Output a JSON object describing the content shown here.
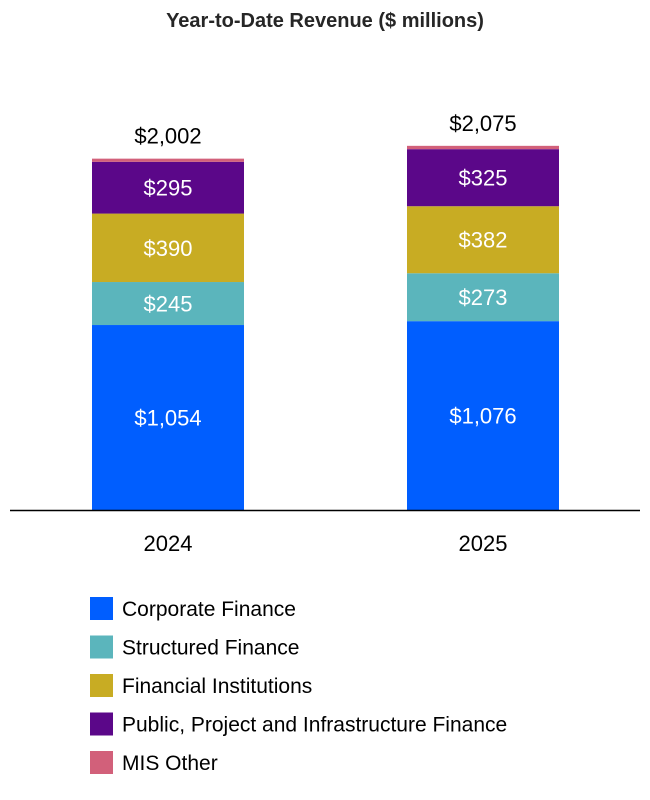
{
  "chart_data": {
    "type": "bar",
    "stacked": true,
    "title": "Year-to-Date Revenue ($ millions)",
    "xlabel": "",
    "ylabel": "",
    "categories": [
      "2024",
      "2025"
    ],
    "totals": [
      2002,
      2075
    ],
    "total_labels": [
      "$2,002",
      "$2,075"
    ],
    "series": [
      {
        "name": "Corporate Finance",
        "color": "#005EFF",
        "values": [
          1054,
          1076
        ],
        "labels": [
          "$1,054",
          "$1,076"
        ]
      },
      {
        "name": "Structured Finance",
        "color": "#5BB5BC",
        "values": [
          245,
          273
        ],
        "labels": [
          "$245",
          "$273"
        ]
      },
      {
        "name": "Financial Institutions",
        "color": "#C8AC23",
        "values": [
          390,
          382
        ],
        "labels": [
          "$390",
          "$382"
        ]
      },
      {
        "name": "Public, Project and Infrastructure Finance",
        "color": "#5B0789",
        "values": [
          295,
          325
        ],
        "labels": [
          "$295",
          "$325"
        ]
      },
      {
        "name": "MIS Other",
        "color": "#D2607A",
        "values": [
          18,
          19
        ],
        "labels": [
          "",
          ""
        ]
      }
    ],
    "ylim": [
      0,
      2075
    ],
    "grid": false,
    "legend_position": "bottom"
  }
}
